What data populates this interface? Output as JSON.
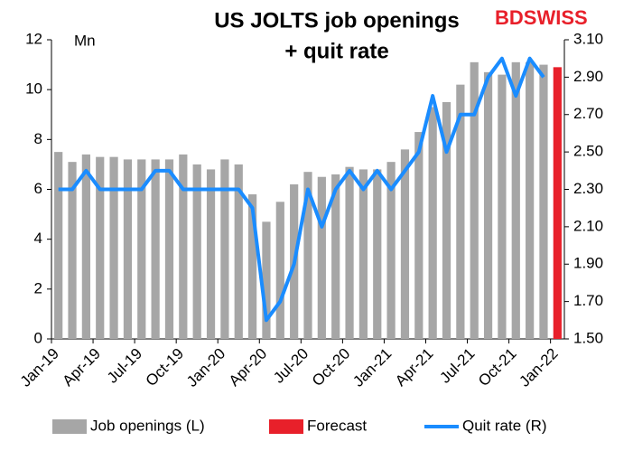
{
  "chart_data": {
    "type": "bar_line",
    "title": [
      "US JOLTS job openings",
      "+ quit rate"
    ],
    "brand": "BDSWISS",
    "y_label": "Mn",
    "categories": [
      "Jan-19",
      null,
      null,
      "Apr-19",
      null,
      null,
      "Jul-19",
      null,
      null,
      "Oct-19",
      null,
      null,
      "Jan-20",
      null,
      null,
      "Apr-20",
      null,
      null,
      "Jul-20",
      null,
      null,
      "Oct-20",
      null,
      null,
      "Jan-21",
      null,
      null,
      "Apr-21",
      null,
      null,
      "Jul-21",
      null,
      null,
      "Oct-21",
      null,
      null,
      "Jan-22"
    ],
    "series": [
      {
        "name": "Job openings (L)",
        "color": "#a6a6a6",
        "kind": "bar",
        "axis": "y",
        "values": [
          7.5,
          7.1,
          7.4,
          7.3,
          7.3,
          7.2,
          7.2,
          7.2,
          7.2,
          7.4,
          7.0,
          6.8,
          7.2,
          7.0,
          5.8,
          4.7,
          5.5,
          6.2,
          6.7,
          6.5,
          6.6,
          6.9,
          6.8,
          6.8,
          7.1,
          7.6,
          8.3,
          9.3,
          9.5,
          10.2,
          11.1,
          10.7,
          10.6,
          11.1,
          11.1,
          11.0,
          null
        ]
      },
      {
        "name": "Forecast",
        "color": "#e8202a",
        "kind": "bar",
        "axis": "y",
        "values": [
          null,
          null,
          null,
          null,
          null,
          null,
          null,
          null,
          null,
          null,
          null,
          null,
          null,
          null,
          null,
          null,
          null,
          null,
          null,
          null,
          null,
          null,
          null,
          null,
          null,
          null,
          null,
          null,
          null,
          null,
          null,
          null,
          null,
          null,
          null,
          null,
          10.9
        ]
      },
      {
        "name": "Quit rate (R)",
        "color": "#1a8cff",
        "kind": "line",
        "axis": "y2",
        "values": [
          2.3,
          2.3,
          2.4,
          2.3,
          2.3,
          2.3,
          2.3,
          2.4,
          2.4,
          2.3,
          2.3,
          2.3,
          2.3,
          2.3,
          2.2,
          1.6,
          1.7,
          1.9,
          2.3,
          2.1,
          2.3,
          2.4,
          2.3,
          2.4,
          2.3,
          2.4,
          2.5,
          2.8,
          2.5,
          2.7,
          2.7,
          2.9,
          3.0,
          2.8,
          3.0,
          2.9,
          null
        ]
      }
    ],
    "ylim": [
      0,
      12
    ],
    "yticks": [
      0,
      2,
      4,
      6,
      8,
      10,
      12
    ],
    "y2lim": [
      1.5,
      3.1
    ],
    "y2ticks": [
      {
        "value": 1.5,
        "label": "1.50"
      },
      {
        "value": 1.7,
        "label": "1.70"
      },
      {
        "value": 1.9,
        "label": "1.90"
      },
      {
        "value": 2.1,
        "label": "2.10"
      },
      {
        "value": 2.3,
        "label": "2.30"
      },
      {
        "value": 2.5,
        "label": "2.50"
      },
      {
        "value": 2.7,
        "label": "2.70"
      },
      {
        "value": 2.9,
        "label": "2.90"
      },
      {
        "value": 3.1,
        "label": "3.10"
      }
    ],
    "legend": "bottom"
  }
}
